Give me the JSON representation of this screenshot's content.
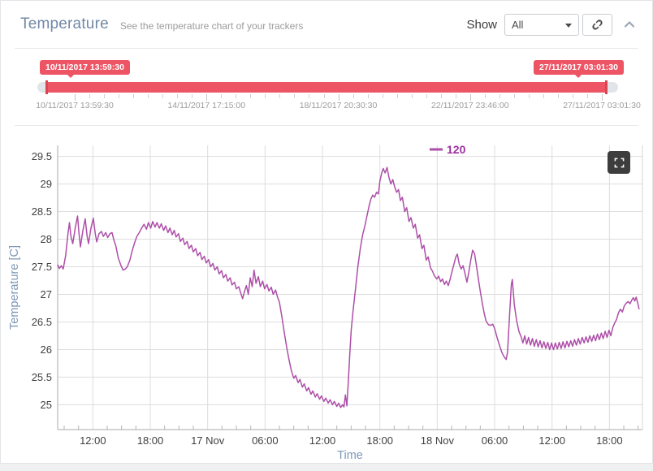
{
  "header": {
    "title": "Temperature",
    "subtitle": "See the temperature chart of your trackers",
    "show_label": "Show",
    "tracker_select_value": "All",
    "icons": {
      "unlink": "unlink-icon",
      "collapse": "chevron-up-icon"
    }
  },
  "range_slider": {
    "from_tooltip": "10/11/2017 13:59:30",
    "to_tooltip": "27/11/2017 03:01:30",
    "axis_labels": [
      "10/11/2017 13:59:30",
      "14/11/2017 17:15:00",
      "18/11/2017 20:30:30",
      "22/11/2017 23:46:00",
      "27/11/2017 03:01:30"
    ],
    "accent_color": "#ed5565",
    "handle_color": "#da4453"
  },
  "chart_data": {
    "type": "line",
    "title": "",
    "xlabel": "Time",
    "ylabel": "Temperature [C]",
    "x_unit": "hours relative to 17 Nov 00:00",
    "xlim": [
      -15.68,
      45.45
    ],
    "ylim": [
      24.55,
      29.7
    ],
    "grid": true,
    "legend_position": "top-center",
    "legend_text_color": "#9c2f9c",
    "axis_title_color": "#7d98b6",
    "minor_tick_step_hours": 1.5,
    "yticks": [
      25,
      25.5,
      26,
      26.5,
      27,
      27.5,
      28,
      28.5,
      29,
      29.5
    ],
    "xticks": [
      {
        "t": -12,
        "label": "12:00"
      },
      {
        "t": -6,
        "label": "18:00"
      },
      {
        "t": 0,
        "label": "17 Nov"
      },
      {
        "t": 6,
        "label": "06:00"
      },
      {
        "t": 12,
        "label": "12:00"
      },
      {
        "t": 18,
        "label": "18:00"
      },
      {
        "t": 24,
        "label": "18 Nov"
      },
      {
        "t": 30,
        "label": "06:00"
      },
      {
        "t": 36,
        "label": "12:00"
      },
      {
        "t": 42,
        "label": "18:00"
      }
    ],
    "series": [
      {
        "name": "120",
        "color": "#ad4fa8",
        "points": [
          [
            -15.68,
            27.54
          ],
          [
            -15.5,
            27.47
          ],
          [
            -15.3,
            27.52
          ],
          [
            -15.1,
            27.46
          ],
          [
            -14.85,
            27.7
          ],
          [
            -14.6,
            28.1
          ],
          [
            -14.45,
            28.3
          ],
          [
            -14.3,
            28.05
          ],
          [
            -14.1,
            27.92
          ],
          [
            -13.85,
            28.2
          ],
          [
            -13.6,
            28.42
          ],
          [
            -13.45,
            28.1
          ],
          [
            -13.3,
            27.86
          ],
          [
            -13.05,
            28.15
          ],
          [
            -12.8,
            28.37
          ],
          [
            -12.6,
            28.05
          ],
          [
            -12.45,
            27.92
          ],
          [
            -12.2,
            28.2
          ],
          [
            -11.95,
            28.38
          ],
          [
            -11.75,
            28.1
          ],
          [
            -11.6,
            27.95
          ],
          [
            -11.35,
            28.1
          ],
          [
            -11.1,
            28.14
          ],
          [
            -10.9,
            28.05
          ],
          [
            -10.65,
            28.12
          ],
          [
            -10.45,
            28.03
          ],
          [
            -10.2,
            28.1
          ],
          [
            -10.0,
            28.12
          ],
          [
            -9.8,
            27.98
          ],
          [
            -9.6,
            27.88
          ],
          [
            -9.35,
            27.66
          ],
          [
            -9.1,
            27.54
          ],
          [
            -8.85,
            27.44
          ],
          [
            -8.6,
            27.46
          ],
          [
            -8.4,
            27.5
          ],
          [
            -8.15,
            27.61
          ],
          [
            -7.9,
            27.78
          ],
          [
            -7.65,
            27.93
          ],
          [
            -7.4,
            28.05
          ],
          [
            -7.15,
            28.12
          ],
          [
            -6.9,
            28.2
          ],
          [
            -6.65,
            28.27
          ],
          [
            -6.4,
            28.18
          ],
          [
            -6.2,
            28.3
          ],
          [
            -5.95,
            28.2
          ],
          [
            -5.75,
            28.32
          ],
          [
            -5.5,
            28.22
          ],
          [
            -5.3,
            28.3
          ],
          [
            -5.05,
            28.2
          ],
          [
            -4.85,
            28.28
          ],
          [
            -4.6,
            28.16
          ],
          [
            -4.4,
            28.24
          ],
          [
            -4.15,
            28.12
          ],
          [
            -3.95,
            28.2
          ],
          [
            -3.7,
            28.08
          ],
          [
            -3.5,
            28.16
          ],
          [
            -3.3,
            28.04
          ],
          [
            -3.05,
            28.1
          ],
          [
            -2.85,
            27.96
          ],
          [
            -2.6,
            28.02
          ],
          [
            -2.4,
            27.9
          ],
          [
            -2.15,
            27.96
          ],
          [
            -1.95,
            27.83
          ],
          [
            -1.7,
            27.89
          ],
          [
            -1.5,
            27.77
          ],
          [
            -1.25,
            27.83
          ],
          [
            -1.05,
            27.7
          ],
          [
            -0.8,
            27.76
          ],
          [
            -0.6,
            27.63
          ],
          [
            -0.35,
            27.69
          ],
          [
            -0.15,
            27.57
          ],
          [
            0.1,
            27.63
          ],
          [
            0.3,
            27.5
          ],
          [
            0.55,
            27.56
          ],
          [
            0.75,
            27.44
          ],
          [
            1.0,
            27.5
          ],
          [
            1.2,
            27.37
          ],
          [
            1.45,
            27.43
          ],
          [
            1.65,
            27.3
          ],
          [
            1.9,
            27.36
          ],
          [
            2.1,
            27.24
          ],
          [
            2.35,
            27.3
          ],
          [
            2.55,
            27.17
          ],
          [
            2.8,
            27.22
          ],
          [
            3.0,
            27.1
          ],
          [
            3.25,
            27.14
          ],
          [
            3.45,
            27.03
          ],
          [
            3.65,
            26.92
          ],
          [
            3.85,
            27.05
          ],
          [
            4.05,
            27.16
          ],
          [
            4.25,
            27.0
          ],
          [
            4.45,
            27.3
          ],
          [
            4.65,
            27.14
          ],
          [
            4.85,
            27.44
          ],
          [
            5.05,
            27.2
          ],
          [
            5.3,
            27.32
          ],
          [
            5.5,
            27.14
          ],
          [
            5.75,
            27.24
          ],
          [
            5.95,
            27.1
          ],
          [
            6.2,
            27.18
          ],
          [
            6.4,
            27.06
          ],
          [
            6.65,
            27.13
          ],
          [
            6.85,
            27.0
          ],
          [
            7.1,
            27.08
          ],
          [
            7.3,
            26.95
          ],
          [
            7.5,
            26.86
          ],
          [
            7.75,
            26.6
          ],
          [
            8.0,
            26.32
          ],
          [
            8.25,
            26.05
          ],
          [
            8.5,
            25.82
          ],
          [
            8.75,
            25.62
          ],
          [
            9.0,
            25.48
          ],
          [
            9.2,
            25.53
          ],
          [
            9.45,
            25.4
          ],
          [
            9.65,
            25.46
          ],
          [
            9.9,
            25.32
          ],
          [
            10.1,
            25.38
          ],
          [
            10.35,
            25.25
          ],
          [
            10.55,
            25.31
          ],
          [
            10.8,
            25.19
          ],
          [
            11.0,
            25.25
          ],
          [
            11.25,
            25.14
          ],
          [
            11.45,
            25.2
          ],
          [
            11.7,
            25.1
          ],
          [
            11.9,
            25.16
          ],
          [
            12.15,
            25.06
          ],
          [
            12.35,
            25.12
          ],
          [
            12.6,
            25.03
          ],
          [
            12.8,
            25.09
          ],
          [
            13.05,
            25.0
          ],
          [
            13.25,
            25.06
          ],
          [
            13.5,
            24.97
          ],
          [
            13.7,
            25.03
          ],
          [
            13.9,
            24.95
          ],
          [
            14.1,
            25.0
          ],
          [
            14.25,
            24.96
          ],
          [
            14.4,
            25.18
          ],
          [
            14.55,
            24.98
          ],
          [
            14.7,
            25.4
          ],
          [
            14.85,
            25.9
          ],
          [
            15.0,
            26.35
          ],
          [
            15.2,
            26.7
          ],
          [
            15.45,
            27.1
          ],
          [
            15.7,
            27.5
          ],
          [
            15.95,
            27.82
          ],
          [
            16.2,
            28.08
          ],
          [
            16.45,
            28.25
          ],
          [
            16.65,
            28.42
          ],
          [
            16.85,
            28.58
          ],
          [
            17.05,
            28.72
          ],
          [
            17.25,
            28.8
          ],
          [
            17.45,
            28.76
          ],
          [
            17.65,
            28.85
          ],
          [
            17.85,
            28.82
          ],
          [
            18.0,
            29.05
          ],
          [
            18.2,
            29.2
          ],
          [
            18.35,
            29.28
          ],
          [
            18.55,
            29.2
          ],
          [
            18.75,
            29.3
          ],
          [
            18.95,
            29.12
          ],
          [
            19.15,
            29.0
          ],
          [
            19.35,
            29.08
          ],
          [
            19.55,
            28.95
          ],
          [
            19.75,
            28.85
          ],
          [
            19.95,
            28.9
          ],
          [
            20.15,
            28.7
          ],
          [
            20.35,
            28.76
          ],
          [
            20.6,
            28.5
          ],
          [
            20.8,
            28.57
          ],
          [
            21.05,
            28.32
          ],
          [
            21.25,
            28.39
          ],
          [
            21.5,
            28.2
          ],
          [
            21.7,
            28.27
          ],
          [
            21.95,
            28.02
          ],
          [
            22.15,
            28.08
          ],
          [
            22.4,
            27.83
          ],
          [
            22.6,
            27.89
          ],
          [
            22.85,
            27.62
          ],
          [
            23.05,
            27.68
          ],
          [
            23.3,
            27.48
          ],
          [
            23.5,
            27.42
          ],
          [
            23.7,
            27.34
          ],
          [
            23.95,
            27.28
          ],
          [
            24.15,
            27.33
          ],
          [
            24.35,
            27.23
          ],
          [
            24.55,
            27.28
          ],
          [
            24.75,
            27.18
          ],
          [
            24.95,
            27.24
          ],
          [
            25.15,
            27.16
          ],
          [
            25.35,
            27.28
          ],
          [
            25.55,
            27.42
          ],
          [
            25.75,
            27.55
          ],
          [
            25.95,
            27.68
          ],
          [
            26.1,
            27.73
          ],
          [
            26.3,
            27.55
          ],
          [
            26.5,
            27.46
          ],
          [
            26.7,
            27.52
          ],
          [
            26.9,
            27.38
          ],
          [
            27.1,
            27.22
          ],
          [
            27.3,
            27.4
          ],
          [
            27.5,
            27.62
          ],
          [
            27.7,
            27.8
          ],
          [
            27.9,
            27.74
          ],
          [
            28.1,
            27.52
          ],
          [
            28.3,
            27.28
          ],
          [
            28.5,
            27.05
          ],
          [
            28.7,
            26.85
          ],
          [
            28.9,
            26.66
          ],
          [
            29.1,
            26.52
          ],
          [
            29.35,
            26.45
          ],
          [
            29.6,
            26.44
          ],
          [
            29.8,
            26.46
          ],
          [
            30.0,
            26.38
          ],
          [
            30.25,
            26.22
          ],
          [
            30.5,
            26.08
          ],
          [
            30.75,
            25.95
          ],
          [
            30.95,
            25.88
          ],
          [
            31.2,
            25.82
          ],
          [
            31.35,
            25.95
          ],
          [
            31.55,
            26.6
          ],
          [
            31.75,
            27.18
          ],
          [
            31.85,
            27.27
          ],
          [
            32.05,
            26.82
          ],
          [
            32.3,
            26.52
          ],
          [
            32.55,
            26.32
          ],
          [
            32.75,
            26.24
          ],
          [
            32.95,
            26.12
          ],
          [
            33.15,
            26.25
          ],
          [
            33.35,
            26.1
          ],
          [
            33.55,
            26.22
          ],
          [
            33.75,
            26.08
          ],
          [
            33.95,
            26.2
          ],
          [
            34.15,
            26.06
          ],
          [
            34.35,
            26.18
          ],
          [
            34.55,
            26.05
          ],
          [
            34.75,
            26.16
          ],
          [
            34.95,
            26.03
          ],
          [
            35.15,
            26.14
          ],
          [
            35.35,
            26.02
          ],
          [
            35.55,
            26.13
          ],
          [
            35.75,
            26.0
          ],
          [
            35.95,
            26.12
          ],
          [
            36.15,
            26.0
          ],
          [
            36.35,
            26.12
          ],
          [
            36.55,
            26.01
          ],
          [
            36.75,
            26.13
          ],
          [
            36.95,
            26.02
          ],
          [
            37.15,
            26.14
          ],
          [
            37.35,
            26.03
          ],
          [
            37.55,
            26.15
          ],
          [
            37.75,
            26.05
          ],
          [
            37.95,
            26.16
          ],
          [
            38.15,
            26.06
          ],
          [
            38.35,
            26.18
          ],
          [
            38.55,
            26.08
          ],
          [
            38.75,
            26.2
          ],
          [
            38.95,
            26.1
          ],
          [
            39.15,
            26.22
          ],
          [
            39.35,
            26.12
          ],
          [
            39.55,
            26.23
          ],
          [
            39.75,
            26.13
          ],
          [
            39.95,
            26.25
          ],
          [
            40.15,
            26.15
          ],
          [
            40.35,
            26.26
          ],
          [
            40.55,
            26.16
          ],
          [
            40.75,
            26.28
          ],
          [
            40.95,
            26.18
          ],
          [
            41.15,
            26.3
          ],
          [
            41.35,
            26.2
          ],
          [
            41.55,
            26.33
          ],
          [
            41.75,
            26.22
          ],
          [
            41.95,
            26.35
          ],
          [
            42.15,
            26.25
          ],
          [
            42.35,
            26.4
          ],
          [
            42.55,
            26.48
          ],
          [
            42.75,
            26.55
          ],
          [
            42.95,
            26.67
          ],
          [
            43.15,
            26.73
          ],
          [
            43.35,
            26.68
          ],
          [
            43.55,
            26.79
          ],
          [
            43.75,
            26.84
          ],
          [
            43.95,
            26.87
          ],
          [
            44.15,
            26.83
          ],
          [
            44.35,
            26.9
          ],
          [
            44.5,
            26.94
          ],
          [
            44.65,
            26.88
          ],
          [
            44.8,
            26.95
          ],
          [
            44.95,
            26.85
          ],
          [
            45.1,
            26.73
          ]
        ]
      }
    ]
  }
}
